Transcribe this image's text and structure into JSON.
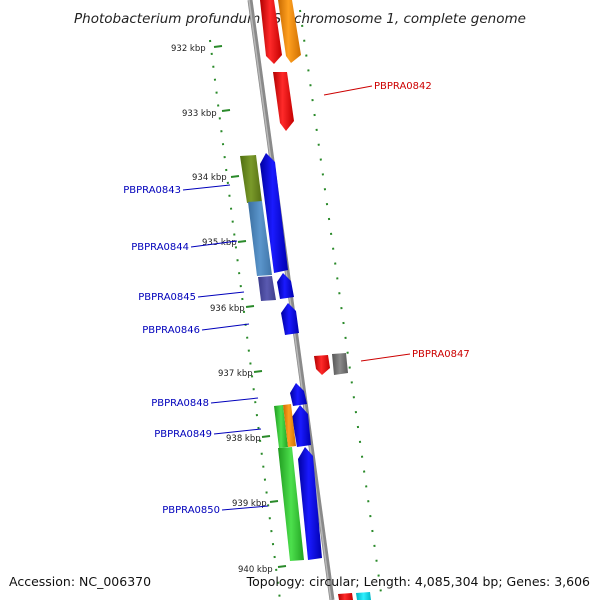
{
  "title": "Photobacterium profundum SS9 chromosome 1, complete genome",
  "accession": "Accession: NC_006370",
  "topology": "Topology: circular; Length: 4,085,304 bp; Genes: 3,606",
  "ticks": [
    "932 kbp",
    "933 kbp",
    "934 kbp",
    "935 kbp",
    "936 kbp",
    "937 kbp",
    "938 kbp",
    "939 kbp",
    "940 kbp"
  ],
  "gene_labels": [
    "PBPRA0842",
    "PBPRA0843",
    "PBPRA0844",
    "PBPRA0845",
    "PBPRA0846",
    "PBPRA0847",
    "PBPRA0848",
    "PBPRA0849",
    "PBPRA0850"
  ],
  "colors": {
    "reverse_label": "#cc0000",
    "forward_label": "#0000bb",
    "backbone": "#888888",
    "tick": "#2a8a2a"
  }
}
